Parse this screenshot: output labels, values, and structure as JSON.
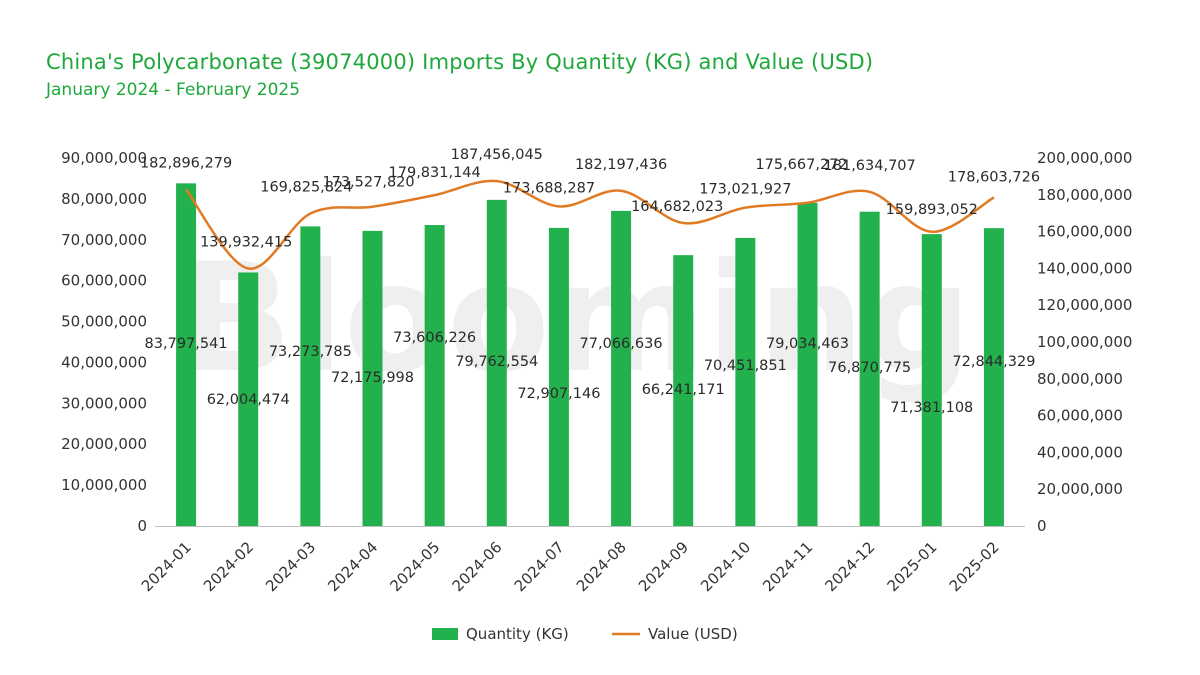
{
  "title": "China's Polycarbonate (39074000) Imports By Quantity (KG) and Value (USD)",
  "subtitle": "January 2024 - February 2025",
  "watermark": "Blooming",
  "colors": {
    "bar": "#22b14c",
    "line": "#e07b24",
    "title": "#1fa83c",
    "axis": "#bfbfbf"
  },
  "chart_data": {
    "type": "bar",
    "categories": [
      "2024-01",
      "2024-02",
      "2024-03",
      "2024-04",
      "2024-05",
      "2024-06",
      "2024-07",
      "2024-08",
      "2024-09",
      "2024-10",
      "2024-11",
      "2024-12",
      "2025-01",
      "2025-02"
    ],
    "series": [
      {
        "name": "Quantity (KG)",
        "type": "bar",
        "axis": "left",
        "values": [
          83797541,
          62004474,
          73273785,
          72175998,
          73606226,
          79762554,
          72907146,
          77066636,
          66241171,
          70451851,
          79034463,
          76870775,
          71381108,
          72844329
        ],
        "labels": [
          "83,797,541",
          "62,004,474",
          "73,273,785",
          "72,175,998",
          "73,606,226",
          "79,762,554",
          "72,907,146",
          "77,066,636",
          "66,241,171",
          "70,451,851",
          "79,034,463",
          "76,870,775",
          "71,381,108",
          "72,844,329"
        ]
      },
      {
        "name": "Value (USD)",
        "type": "line",
        "axis": "right",
        "values": [
          182896279,
          139932415,
          169825824,
          173527820,
          179831144,
          187456045,
          173688287,
          182197436,
          164682023,
          173021927,
          175667272,
          181634707,
          159893052,
          178603726
        ],
        "labels": [
          "182,896,279",
          "139,932,415",
          "169,825,824",
          "173,527,820",
          "179,831,144",
          "187,456,045",
          "173,688,287",
          "182,197,436",
          "164,682,023",
          "173,021,927",
          "175,667,272",
          "181,634,707",
          "159,893,052",
          "178,603,726"
        ]
      }
    ],
    "y_left": {
      "min": 0,
      "max": 90000000,
      "ticks": [
        "0",
        "10,000,000",
        "20,000,000",
        "30,000,000",
        "40,000,000",
        "50,000,000",
        "60,000,000",
        "70,000,000",
        "80,000,000",
        "90,000,000"
      ]
    },
    "y_right": {
      "min": 0,
      "max": 200000000,
      "ticks": [
        "0",
        "20,000,000",
        "40,000,000",
        "60,000,000",
        "80,000,000",
        "100,000,000",
        "120,000,000",
        "140,000,000",
        "160,000,000",
        "180,000,000",
        "200,000,000"
      ]
    },
    "legend": {
      "position": "bottom",
      "items": [
        "Quantity (KG)",
        "Value (USD)"
      ]
    },
    "grid": false
  }
}
